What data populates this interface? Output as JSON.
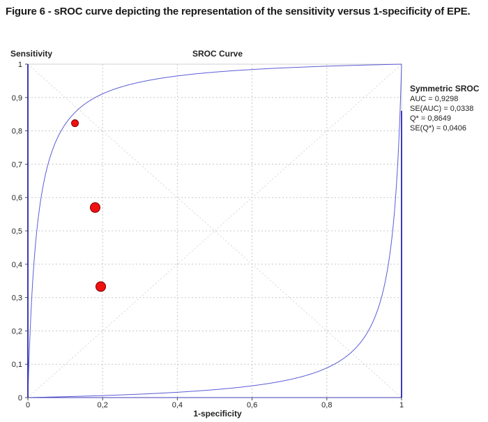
{
  "figure_caption": "Figure 6 - sROC curve depicting the representation of the sensitivity versus 1-specificity of EPE.",
  "chart_data": {
    "type": "scatter",
    "title": "SROC Curve",
    "xlabel": "1-specificity",
    "ylabel": "Sensitivity",
    "xlim": [
      0,
      1
    ],
    "ylim": [
      0,
      1
    ],
    "grid": true,
    "x_ticks": [
      "0",
      "0,2",
      "0,4",
      "0,6",
      "0,8",
      "1"
    ],
    "y_ticks": [
      "0",
      "0,1",
      "0,2",
      "0,3",
      "0,4",
      "0,5",
      "0,6",
      "0,7",
      "0,8",
      "0,9",
      "1"
    ],
    "points": [
      {
        "x": 0.126,
        "y": 0.823,
        "size": "small"
      },
      {
        "x": 0.18,
        "y": 0.57,
        "size": "large"
      },
      {
        "x": 0.195,
        "y": 0.333,
        "size": "large"
      }
    ],
    "curve": {
      "type": "symmetric-sroc",
      "auc": 0.9298
    },
    "legend": {
      "position": "right",
      "title": "Symmetric SROC",
      "lines": [
        "AUC = 0,9298",
        "SE(AUC) = 0,0338",
        "Q* = 0,8649",
        "SE(Q*) = 0,0406"
      ]
    },
    "colors": {
      "curve": "#5b5bd6",
      "point_fill": "#f01010",
      "point_stroke": "#7a0000",
      "grid": "#c8c8c8",
      "axis": "#3b3bb8"
    }
  }
}
